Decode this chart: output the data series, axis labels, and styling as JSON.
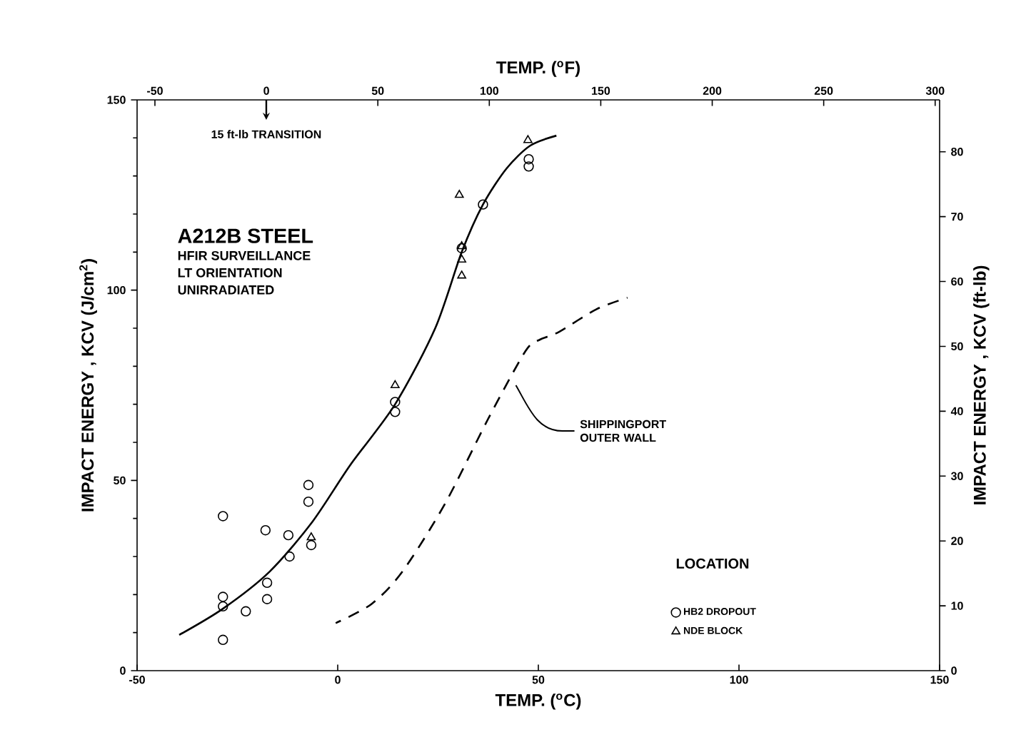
{
  "chart_data": {
    "type": "scatter",
    "xlabel": "TEMP. ($^{o}$C)",
    "ylabel": "IMPACT ENERGY , KCV (J/cm$^{2}$)",
    "y2label": "IMPACT ENERGY , KCV (ft-lb)",
    "x2label": "TEMP. ($^{o}$F)",
    "xlim": [
      -50,
      150
    ],
    "xticks": [
      -50,
      0,
      50,
      100,
      150
    ],
    "ylim": [
      0,
      150
    ],
    "yticks": [
      0,
      50,
      100,
      150
    ],
    "y2lim": [
      0,
      88
    ],
    "y2ticks": [
      0,
      10,
      20,
      30,
      40,
      50,
      60,
      70,
      80
    ],
    "x2lim": [
      -58,
      302
    ],
    "x2ticks": [
      -50,
      0,
      50,
      100,
      150,
      200,
      250,
      300
    ],
    "legend": "bottom right",
    "legend_title": "LOCATION",
    "grid": false,
    "annotations": [
      "15 ft-lb TRANSITION",
      "A212B STEEL",
      "HFIR SURVEILLANCE",
      "LT ORIENTATION",
      "UNIRRADIATED",
      "SHIPPINGPORT OUTER WALL"
    ],
    "series": [
      {
        "name": "HB2 DROPOUT",
        "marker": "circle",
        "color": "#000000",
        "x": [
          -28.6,
          -28.6,
          -28.6,
          -28.6,
          -22.9,
          -18,
          -17.6,
          -17.6,
          -12.3,
          -12,
          -7.3,
          -7.3,
          -6.6,
          14.3,
          14.3,
          30.9,
          36.2,
          47.6,
          47.6
        ],
        "values": [
          40.6,
          19.4,
          16.9,
          8.1,
          15.6,
          36.9,
          23.1,
          18.8,
          35.6,
          30,
          48.8,
          44.4,
          33,
          70.6,
          68,
          111,
          122.5,
          134.4,
          132.5
        ]
      },
      {
        "name": "NDE BLOCK",
        "marker": "triangle",
        "color": "#000000",
        "x": [
          -6.6,
          14.3,
          30.9,
          30.9,
          30.9,
          30.3,
          47.4
        ],
        "values": [
          35,
          75,
          111.5,
          108,
          103.8,
          125,
          139.4
        ]
      },
      {
        "type": "line",
        "line_style": "solid",
        "color": "#000000",
        "x": [
          -39.5,
          -28.6,
          -17,
          -6.4,
          3.1,
          14.3,
          24.3,
          30.9,
          36.2,
          42.1,
          48,
          54.5
        ],
        "values": [
          9.4,
          16.3,
          26,
          39,
          54,
          70,
          90,
          110,
          122.5,
          132,
          138,
          140.6
        ]
      },
      {
        "type": "line",
        "line_style": "dashed",
        "color": "#000000",
        "x": [
          -0.5,
          8.4,
          16.1,
          26.7,
          37.4,
          46.8,
          50.4,
          55.1,
          64.5,
          72.2
        ],
        "values": [
          12.5,
          17.5,
          26,
          43.8,
          66,
          84,
          87,
          89,
          95,
          98
        ]
      }
    ]
  }
}
